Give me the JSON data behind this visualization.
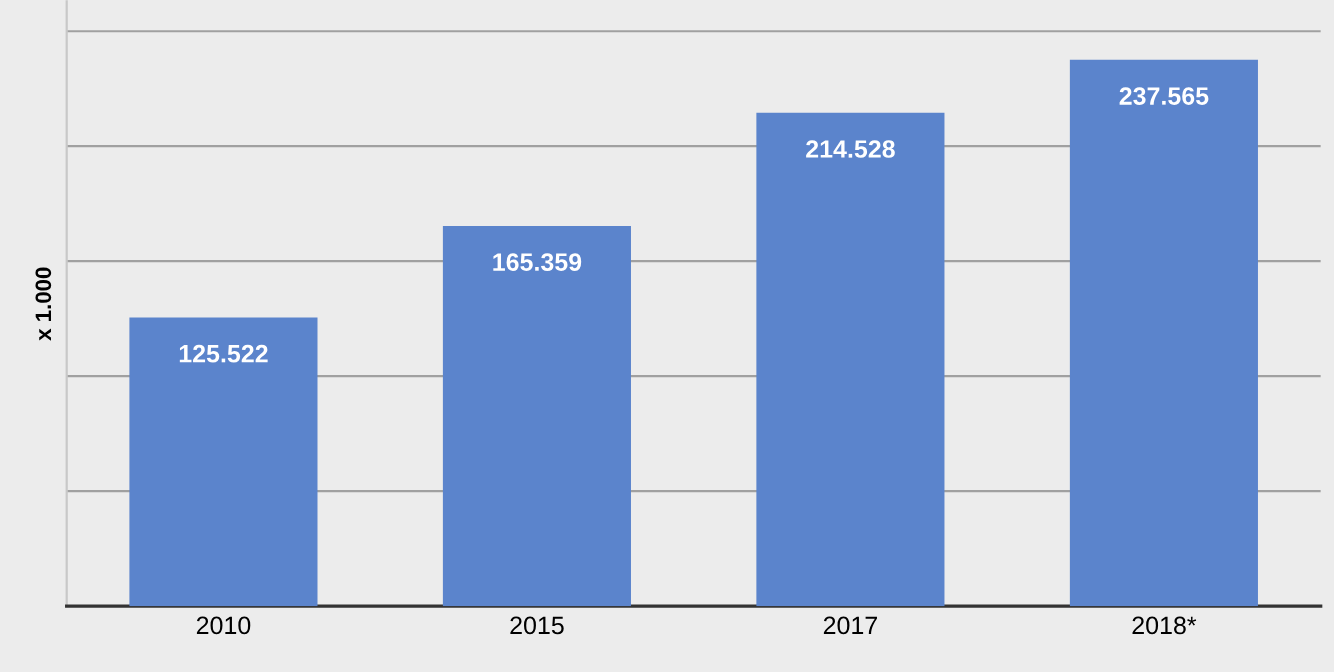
{
  "chart_data": {
    "type": "bar",
    "ylabel": "x 1.000",
    "categories": [
      "2010",
      "2015",
      "2017",
      "2018*"
    ],
    "values": [
      125.522,
      165.359,
      214.528,
      237.565
    ],
    "color": "#5b84cc",
    "data_labels": true,
    "ylim": [
      0,
      263
    ],
    "yticks": [
      {
        "value": 0,
        "label": null
      },
      {
        "value": 50,
        "label": null
      },
      {
        "value": 100,
        "label": null
      },
      {
        "value": 150,
        "label": null
      },
      {
        "value": 200,
        "label": null
      },
      {
        "value": 250,
        "label": null
      }
    ],
    "grid": "y",
    "tick_labels": "x",
    "legend": false
  }
}
